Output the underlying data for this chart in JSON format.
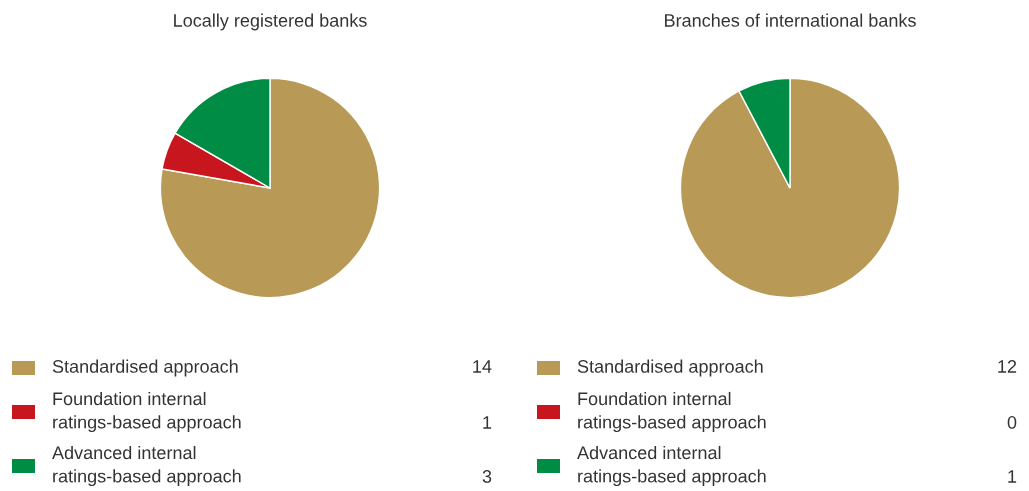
{
  "chart_data": [
    {
      "type": "pie",
      "title": "Locally registered banks",
      "categories": [
        "Standardised approach",
        "Foundation internal\nratings-based approach",
        "Advanced internal\nratings-based approach"
      ],
      "values": [
        14,
        1,
        3
      ],
      "colors": [
        "#b89a56",
        "#c8161e",
        "#008c45"
      ],
      "data_labels": true,
      "legend": "bottom"
    },
    {
      "type": "pie",
      "title": "Branches of international banks",
      "categories": [
        "Standardised approach",
        "Foundation internal\nratings-based approach",
        "Advanced internal\nratings-based approach"
      ],
      "values": [
        12,
        0,
        1
      ],
      "value_labels": [
        "12",
        "0",
        "1"
      ],
      "colors": [
        "#b89a56",
        "#c8161e",
        "#008c45"
      ],
      "legend": "bottom"
    }
  ]
}
